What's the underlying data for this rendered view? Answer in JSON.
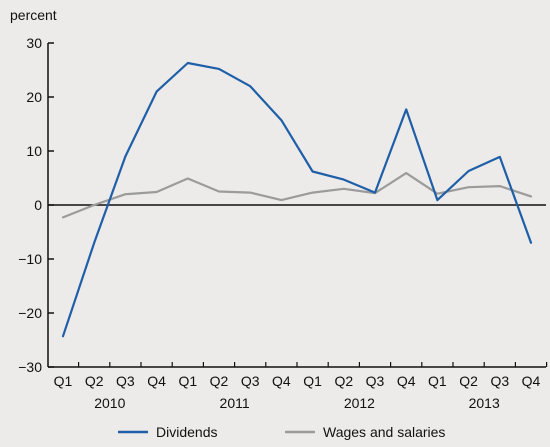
{
  "chart_data": {
    "type": "line",
    "ylabel": "percent",
    "ylim": [
      -30,
      30
    ],
    "yticks": [
      30,
      20,
      10,
      0,
      -10,
      -20,
      -30
    ],
    "ytick_labels": [
      "30",
      "20",
      "10",
      "0",
      "−10",
      "−20",
      "−30"
    ],
    "categories": [
      "Q1",
      "Q2",
      "Q3",
      "Q4",
      "Q1",
      "Q2",
      "Q3",
      "Q4",
      "Q1",
      "Q2",
      "Q3",
      "Q4",
      "Q1",
      "Q2",
      "Q3",
      "Q4"
    ],
    "years": [
      "2010",
      "2011",
      "2012",
      "2013"
    ],
    "series": [
      {
        "name": "Dividends",
        "color": "#1f5fa8",
        "values": [
          -24.3,
          -7.0,
          9.0,
          21.0,
          26.3,
          25.2,
          22.0,
          15.7,
          6.2,
          4.7,
          2.3,
          17.7,
          0.9,
          6.3,
          8.9,
          -7.0
        ]
      },
      {
        "name": "Wages and salaries",
        "color": "#9b9b9b",
        "values": [
          -2.3,
          0.0,
          2.0,
          2.4,
          4.9,
          2.5,
          2.3,
          0.9,
          2.3,
          3.0,
          2.2,
          5.9,
          2.1,
          3.3,
          3.5,
          1.6
        ]
      }
    ],
    "grid": false,
    "legend_position": "bottom"
  }
}
